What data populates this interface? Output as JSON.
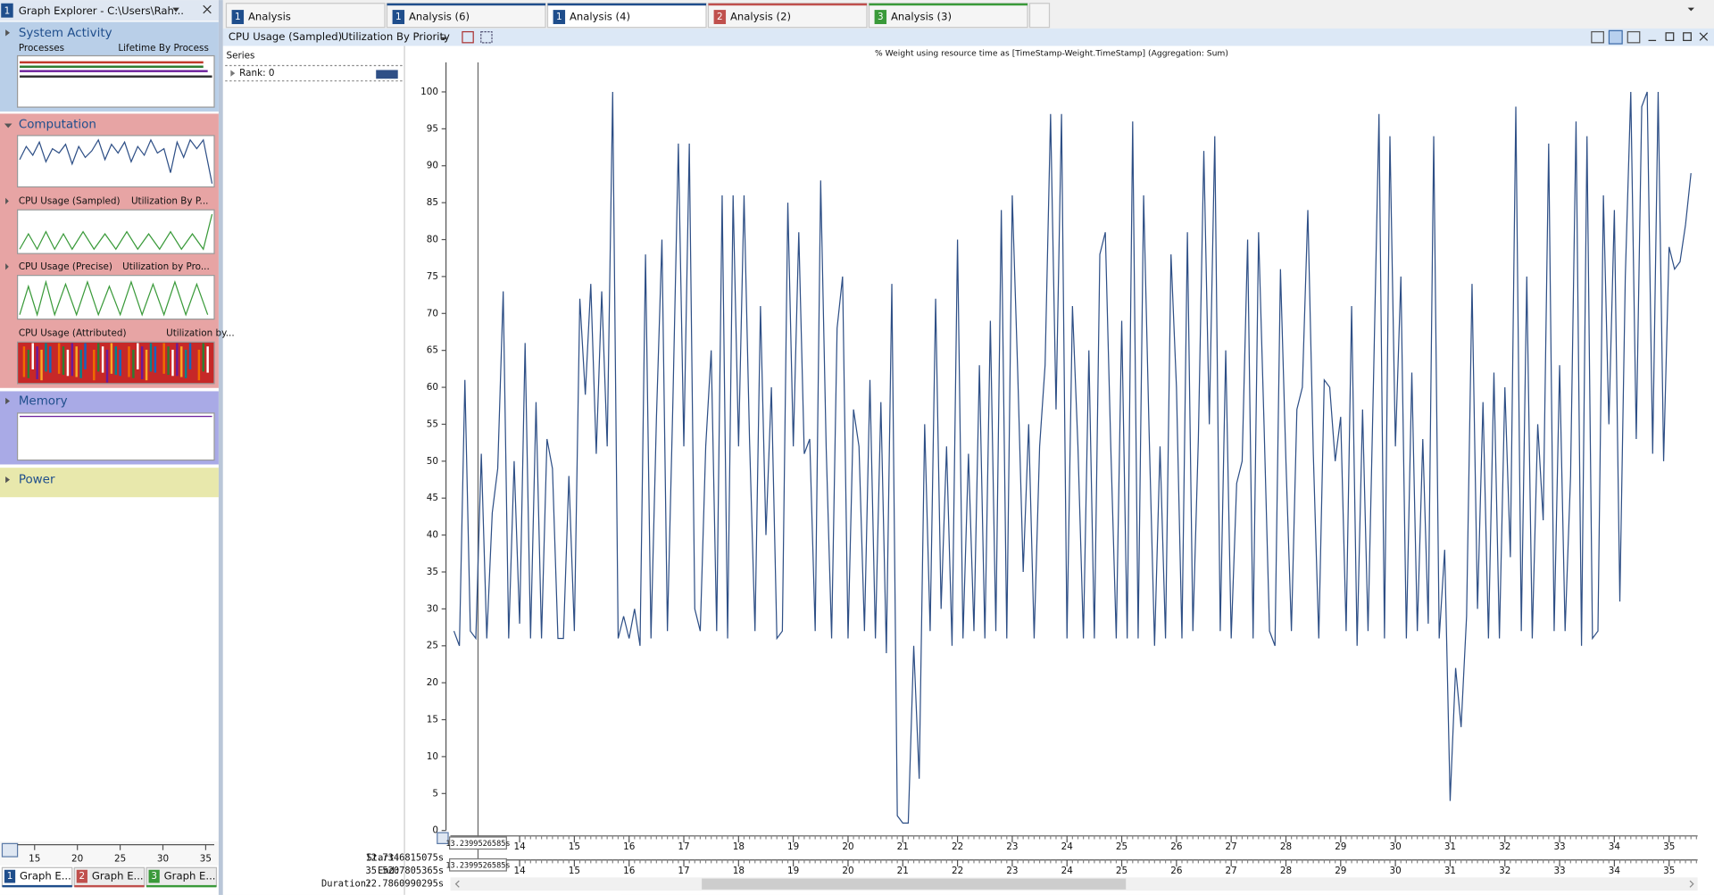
{
  "sidebar": {
    "badge": "1",
    "title": "Graph Explorer - C:\\Users\\Rah...",
    "groups": [
      {
        "name": "System Activity",
        "items": [
          "Processes",
          "Lifetime By Process"
        ]
      },
      {
        "name": "Computation",
        "items": [
          "CPU Usage (Sampled)",
          "Utilization By P...",
          "CPU Usage (Precise)",
          "Utilization by Pro...",
          "CPU Usage (Attributed)",
          "Utilization by..."
        ]
      },
      {
        "name": "Memory"
      },
      {
        "name": "Power"
      }
    ],
    "axis_ticks": [
      15,
      20,
      25,
      30,
      35
    ],
    "tabs": [
      {
        "badge": "1",
        "label": "Graph E..."
      },
      {
        "badge": "2",
        "label": "Graph E..."
      },
      {
        "badge": "3",
        "label": "Graph E..."
      }
    ]
  },
  "tabs": [
    {
      "badge": "1",
      "label": "Analysis"
    },
    {
      "badge": "1",
      "label": "Analysis (6)"
    },
    {
      "badge": "1",
      "label": "Analysis (4)"
    },
    {
      "badge": "2",
      "label": "Analysis (2)"
    },
    {
      "badge": "3",
      "label": "Analysis (3)"
    }
  ],
  "toolbar": {
    "graph": "CPU Usage (Sampled)",
    "preset": "Utilization By Priority"
  },
  "series_panel": {
    "header": "Series",
    "row": "Rank: 0"
  },
  "chart_data": {
    "type": "line",
    "title": "% Weight using resource time as [TimeStamp-Weight.TimeStamp] (Aggregation: Sum)",
    "x": [
      12.8,
      12.9,
      13.0,
      13.1,
      13.2,
      13.3,
      13.4,
      13.5,
      13.6,
      13.7,
      13.8,
      13.9,
      14.0,
      14.1,
      14.2,
      14.3,
      14.4,
      14.5,
      14.6,
      14.7,
      14.8,
      14.9,
      15.0,
      15.1,
      15.2,
      15.3,
      15.4,
      15.5,
      15.6,
      15.7,
      15.8,
      15.9,
      16.0,
      16.1,
      16.2,
      16.3,
      16.4,
      16.5,
      16.6,
      16.7,
      16.8,
      16.9,
      17.0,
      17.1,
      17.2,
      17.3,
      17.4,
      17.5,
      17.6,
      17.7,
      17.8,
      17.9,
      18.0,
      18.1,
      18.2,
      18.3,
      18.4,
      18.5,
      18.6,
      18.7,
      18.8,
      18.9,
      19.0,
      19.1,
      19.2,
      19.3,
      19.4,
      19.5,
      19.6,
      19.7,
      19.8,
      19.9,
      20.0,
      20.1,
      20.2,
      20.3,
      20.4,
      20.5,
      20.6,
      20.7,
      20.8,
      20.9,
      21.0,
      21.1,
      21.2,
      21.3,
      21.4,
      21.5,
      21.6,
      21.7,
      21.8,
      21.9,
      22.0,
      22.1,
      22.2,
      22.3,
      22.4,
      22.5,
      22.6,
      22.7,
      22.8,
      22.9,
      23.0,
      23.1,
      23.2,
      23.3,
      23.4,
      23.5,
      23.6,
      23.7,
      23.8,
      23.9,
      24.0,
      24.1,
      24.2,
      24.3,
      24.4,
      24.5,
      24.6,
      24.7,
      24.8,
      24.9,
      25.0,
      25.1,
      25.2,
      25.3,
      25.4,
      25.5,
      25.6,
      25.7,
      25.8,
      25.9,
      26.0,
      26.1,
      26.2,
      26.3,
      26.4,
      26.5,
      26.6,
      26.7,
      26.8,
      26.9,
      27.0,
      27.1,
      27.2,
      27.3,
      27.4,
      27.5,
      27.6,
      27.7,
      27.8,
      27.9,
      28.0,
      28.1,
      28.2,
      28.3,
      28.4,
      28.5,
      28.6,
      28.7,
      28.8,
      28.9,
      29.0,
      29.1,
      29.2,
      29.3,
      29.4,
      29.5,
      29.6,
      29.7,
      29.8,
      29.9,
      30.0,
      30.1,
      30.2,
      30.3,
      30.4,
      30.5,
      30.6,
      30.7,
      30.8,
      30.9,
      31.0,
      31.1,
      31.2,
      31.3,
      31.4,
      31.5,
      31.6,
      31.7,
      31.8,
      31.9,
      32.0,
      32.1,
      32.2,
      32.3,
      32.4,
      32.5,
      32.6,
      32.7,
      32.8,
      32.9,
      33.0,
      33.1,
      33.2,
      33.3,
      33.4,
      33.5,
      33.6,
      33.7,
      33.8,
      33.9,
      34.0,
      34.1,
      34.2,
      34.3,
      34.4,
      34.5,
      34.6,
      34.7,
      34.8,
      34.9,
      35.0,
      35.1,
      35.2,
      35.3,
      35.4
    ],
    "series": [
      {
        "name": "Rank: 0",
        "color": "#2e4f86",
        "values": [
          27,
          25,
          61,
          27,
          26,
          51,
          26,
          43,
          49,
          73,
          26,
          50,
          28,
          66,
          26,
          58,
          26,
          53,
          49,
          26,
          26,
          48,
          27,
          72,
          59,
          74,
          51,
          73,
          52,
          100,
          26,
          29,
          26,
          30,
          25,
          78,
          26,
          56,
          80,
          27,
          58,
          93,
          52,
          93,
          30,
          27,
          52,
          65,
          27,
          86,
          26,
          86,
          52,
          86,
          53,
          27,
          71,
          40,
          60,
          26,
          27,
          85,
          52,
          81,
          51,
          53,
          27,
          88,
          52,
          26,
          68,
          75,
          26,
          57,
          52,
          27,
          61,
          26,
          58,
          24,
          74,
          2,
          1,
          1,
          25,
          7,
          55,
          27,
          72,
          30,
          52,
          25,
          80,
          26,
          51,
          27,
          63,
          26,
          69,
          27,
          84,
          26,
          86,
          62,
          35,
          55,
          26,
          52,
          63,
          97,
          57,
          97,
          26,
          71,
          52,
          26,
          65,
          26,
          78,
          81,
          52,
          26,
          69,
          26,
          96,
          26,
          86,
          54,
          25,
          52,
          26,
          78,
          60,
          26,
          81,
          27,
          53,
          92,
          55,
          94,
          27,
          65,
          26,
          47,
          50,
          80,
          26,
          81,
          55,
          27,
          25,
          76,
          50,
          27,
          57,
          60,
          84,
          51,
          26,
          61,
          60,
          50,
          56,
          27,
          71,
          25,
          57,
          27,
          61,
          97,
          26,
          94,
          52,
          75,
          26,
          62,
          27,
          53,
          28,
          94,
          26,
          38,
          4,
          22,
          14,
          29,
          74,
          30,
          58,
          26,
          62,
          26,
          60,
          37,
          98,
          27,
          75,
          26,
          55,
          42,
          93,
          27,
          63,
          27,
          48,
          96,
          25,
          94,
          26,
          27,
          86,
          55,
          84,
          31,
          75,
          100,
          53,
          98,
          100,
          51,
          100,
          50,
          79,
          76,
          77,
          82,
          89
        ]
      }
    ],
    "xlim": [
      12.7346815075,
      35.5207805365
    ],
    "ylim": [
      0,
      104
    ],
    "xticks": [
      14,
      15,
      16,
      17,
      18,
      19,
      20,
      21,
      22,
      23,
      24,
      25,
      26,
      27,
      28,
      29,
      30,
      31,
      32,
      33,
      34,
      35
    ],
    "yticks": [
      0,
      5,
      10,
      15,
      20,
      25,
      30,
      35,
      40,
      45,
      50,
      55,
      60,
      65,
      70,
      75,
      80,
      85,
      90,
      95,
      100
    ],
    "cursor": {
      "value": 13.2399526585,
      "label": "13.2399526585s"
    }
  },
  "timeline": {
    "start_label": "Start:",
    "start": "12.7346815075s",
    "end_label": "End:",
    "end": "35.5207805365s",
    "duration_label": "Duration:",
    "duration": "22.7860990295s"
  }
}
